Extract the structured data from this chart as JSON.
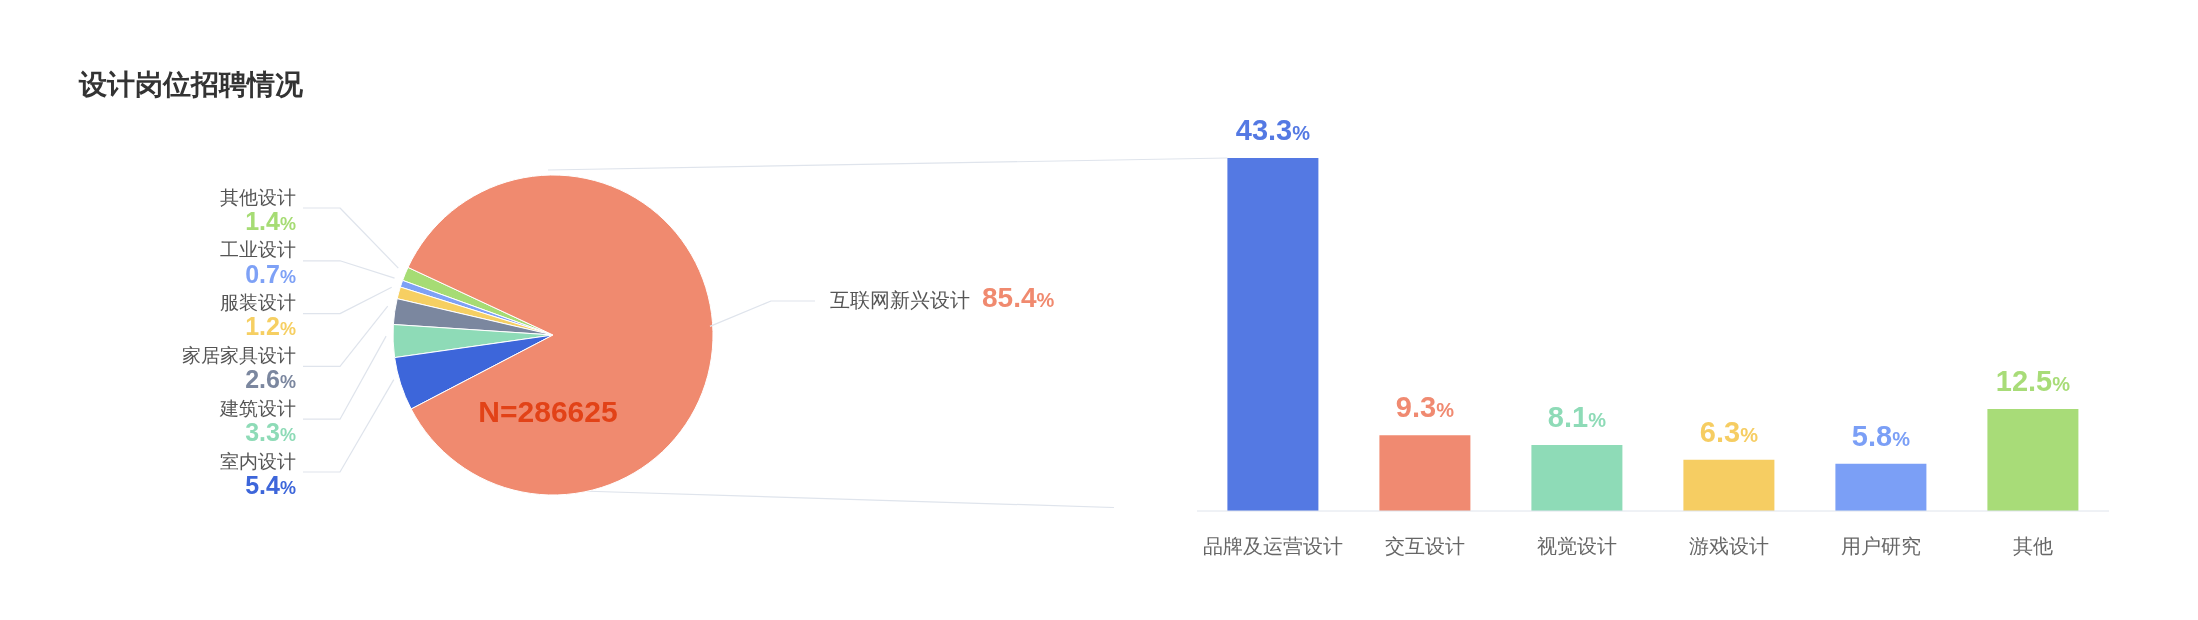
{
  "chart_data": [
    {
      "type": "pie",
      "title": "设计岗位招聘情况",
      "categories": [
        "其他设计",
        "工业设计",
        "服装设计",
        "家居家具设计",
        "建筑设计",
        "室内设计",
        "互联网新兴设计"
      ],
      "values": [
        1.4,
        0.7,
        1.2,
        2.6,
        3.3,
        5.4,
        85.4
      ],
      "colors": [
        "#a6dc74",
        "#7ea1f6",
        "#f6cf62",
        "#7b879f",
        "#8edbb7",
        "#3d66da",
        "#f08a6f"
      ],
      "value_labels": [
        "1.4%",
        "0.7%",
        "1.2%",
        "2.6%",
        "3.3%",
        "5.4%",
        "85.4%"
      ],
      "annotations": [
        "N=286625"
      ]
    },
    {
      "type": "bar",
      "categories": [
        "品牌及运营设计",
        "交互设计",
        "视觉设计",
        "游戏设计",
        "用户研究",
        "其他"
      ],
      "values": [
        43.3,
        9.3,
        8.1,
        6.3,
        5.8,
        12.5
      ],
      "colors": [
        "#5479e3",
        "#f08a71",
        "#8edbb7",
        "#f6cd62",
        "#7b9ff6",
        "#a8dc78"
      ],
      "value_labels": [
        "43.3%",
        "9.3%",
        "8.1%",
        "6.3%",
        "5.8%",
        "12.5%"
      ]
    }
  ]
}
